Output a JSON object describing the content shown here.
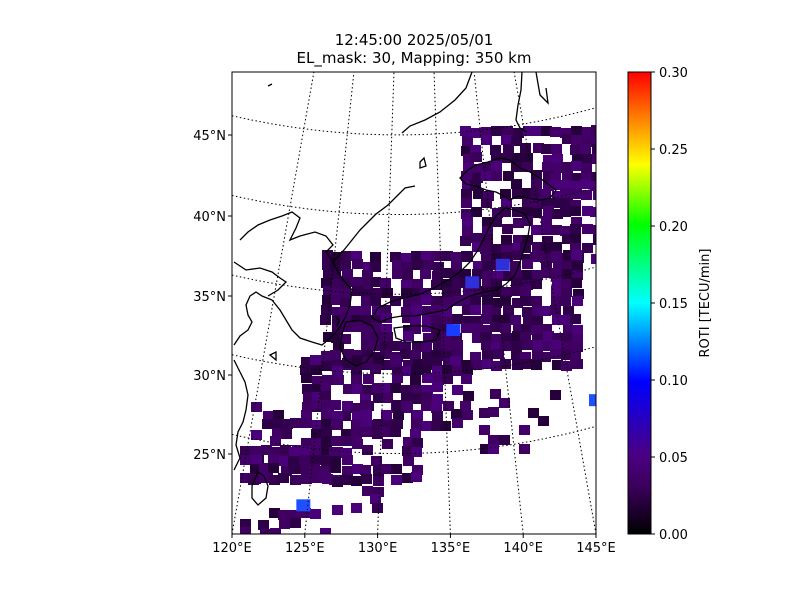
{
  "title_line1": "12:45:00 2025/05/01",
  "title_line2": "EL_mask: 30, Mapping: 350 km",
  "colorbar": {
    "label": "ROTI [TECU/min]",
    "ticks": [
      "0.00",
      "0.05",
      "0.10",
      "0.15",
      "0.20",
      "0.25",
      "0.30"
    ],
    "range": [
      0,
      0.3
    ],
    "colormap": [
      "#000000",
      "#3a005a",
      "#4b0082",
      "#0000ff",
      "#00ffff",
      "#00ff00",
      "#ffff00",
      "#ff8000",
      "#ff0000"
    ]
  },
  "chart_data": {
    "type": "heatmap",
    "title": "12:45:00 2025/05/01 / EL_mask: 30, Mapping: 350 km",
    "lon_range": [
      120,
      145
    ],
    "lat_range": [
      20,
      49
    ],
    "xticks": [
      "120°E",
      "125°E",
      "130°E",
      "135°E",
      "140°E",
      "145°E"
    ],
    "yticks": [
      "25°N",
      "30°N",
      "35°N",
      "40°N",
      "45°N"
    ],
    "grid": true,
    "value_label": "ROTI [TECU/min]",
    "vrange": [
      0,
      0.3
    ],
    "typical_value": 0.03,
    "blue_spots": [
      {
        "lon": 136.5,
        "lat": 35.8,
        "value": 0.05
      },
      {
        "lon": 135.2,
        "lat": 32.8,
        "value": 0.07
      },
      {
        "lon": 124.9,
        "lat": 21.8,
        "value": 0.06
      },
      {
        "lon": 145.0,
        "lat": 28.4,
        "value": 0.06
      },
      {
        "lon": 138.6,
        "lat": 36.9,
        "value": 0.05
      }
    ]
  }
}
